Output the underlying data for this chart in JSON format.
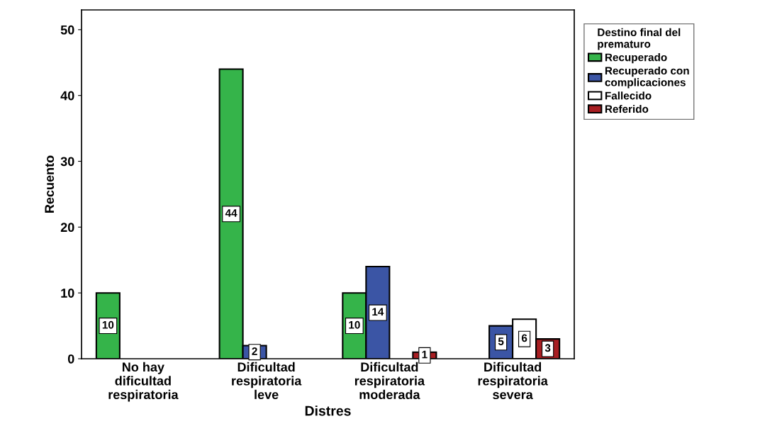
{
  "chart_data": {
    "type": "bar",
    "xlabel": "Distres",
    "ylabel": "Recuento",
    "legend_title": "Destino final del prematuro",
    "categories": [
      "No hay dificultad respiratoria",
      "Dificultad respiratoria leve",
      "Dificultad respiratoria moderada",
      "Dificultad respiratoria severa"
    ],
    "series": [
      {
        "name": "Recuperado",
        "color": "#35b44a",
        "values": [
          10,
          44,
          10,
          null
        ]
      },
      {
        "name": "Recuperado con complicaciones",
        "color": "#3b55a5",
        "values": [
          null,
          2,
          14,
          5
        ]
      },
      {
        "name": "Fallecido",
        "color": "#ffffff",
        "values": [
          null,
          null,
          null,
          6
        ]
      },
      {
        "name": "Referido",
        "color": "#a81e22",
        "values": [
          null,
          null,
          1,
          3
        ]
      }
    ],
    "ylim": [
      0,
      53
    ],
    "yticks": [
      0,
      10,
      20,
      30,
      40,
      50
    ],
    "grid": false,
    "legend": "top right",
    "data_labels": true
  }
}
